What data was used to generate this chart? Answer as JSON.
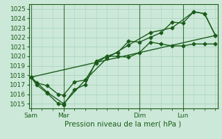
{
  "xlabel": "Pression niveau de la mer( hPa )",
  "bg_color": "#cce8d8",
  "grid_color": "#aad4bf",
  "line_color": "#1a5c1a",
  "ylim": [
    1014.5,
    1025.5
  ],
  "day_labels": [
    "Sam",
    "Mar",
    "Dim",
    "Lun"
  ],
  "day_positions": [
    0,
    3,
    10,
    14
  ],
  "xlim": [
    -0.2,
    17.2
  ],
  "series1_x": [
    0,
    0.5,
    1.5,
    2.5,
    3.0,
    4.0,
    5.0,
    6.0,
    7.0,
    8.0,
    9.0,
    10.0,
    11.0,
    12.0,
    13.0,
    14.0,
    15.0,
    16.0,
    17.0
  ],
  "series1_y": [
    1017.8,
    1017.2,
    1016.9,
    1016.0,
    1015.9,
    1017.3,
    1017.5,
    1019.3,
    1020.0,
    1020.0,
    1019.9,
    1020.4,
    1021.5,
    1021.3,
    1021.1,
    1021.1,
    1021.3,
    1021.3,
    1021.3
  ],
  "series2_x": [
    0,
    0.5,
    1.5,
    2.5,
    3.0,
    4.0,
    5.0,
    6.0,
    7.0,
    8.0,
    9.0,
    10.0,
    11.0,
    12.0,
    13.0,
    14.0,
    15.0,
    16.0,
    17.0
  ],
  "series2_y": [
    1017.8,
    1017.0,
    1016.1,
    1015.0,
    1014.9,
    1016.5,
    1017.0,
    1019.5,
    1020.0,
    1020.4,
    1021.6,
    1021.5,
    1022.0,
    1022.5,
    1023.6,
    1023.5,
    1024.7,
    1024.5,
    1022.2
  ],
  "series3_x": [
    0,
    1.5,
    3.0,
    5.0,
    7.0,
    9.0,
    11.0,
    13.0,
    15.0,
    16.0,
    17.0
  ],
  "series3_y": [
    1017.8,
    1016.2,
    1015.0,
    1017.5,
    1019.8,
    1021.2,
    1022.5,
    1023.0,
    1024.7,
    1024.5,
    1022.2
  ],
  "series4_x": [
    0,
    17.0
  ],
  "series4_y": [
    1017.8,
    1022.2
  ],
  "yticks": [
    1015,
    1016,
    1017,
    1018,
    1019,
    1020,
    1021,
    1022,
    1023,
    1024,
    1025
  ],
  "marker_size": 2.5,
  "line_width": 1.0,
  "fontsize_tick": 6.5,
  "fontsize_label": 7.5
}
